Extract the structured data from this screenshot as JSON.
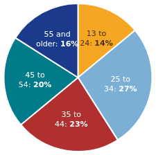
{
  "chart_data": {
    "type": "pie",
    "categories": [
      "13 to 24:",
      "25 to 34:",
      "35 to 44:",
      "45 to 54:",
      "55 and older:"
    ],
    "values": [
      14,
      27,
      23,
      20,
      16
    ],
    "value_labels": [
      "14%",
      "27%",
      "23%",
      "20%",
      "16%"
    ],
    "data_labels": true,
    "colors": [
      "#F5A623",
      "#7BAFD4",
      "#B03030",
      "#007B8A",
      "#1B3A8C"
    ],
    "legend": false
  }
}
